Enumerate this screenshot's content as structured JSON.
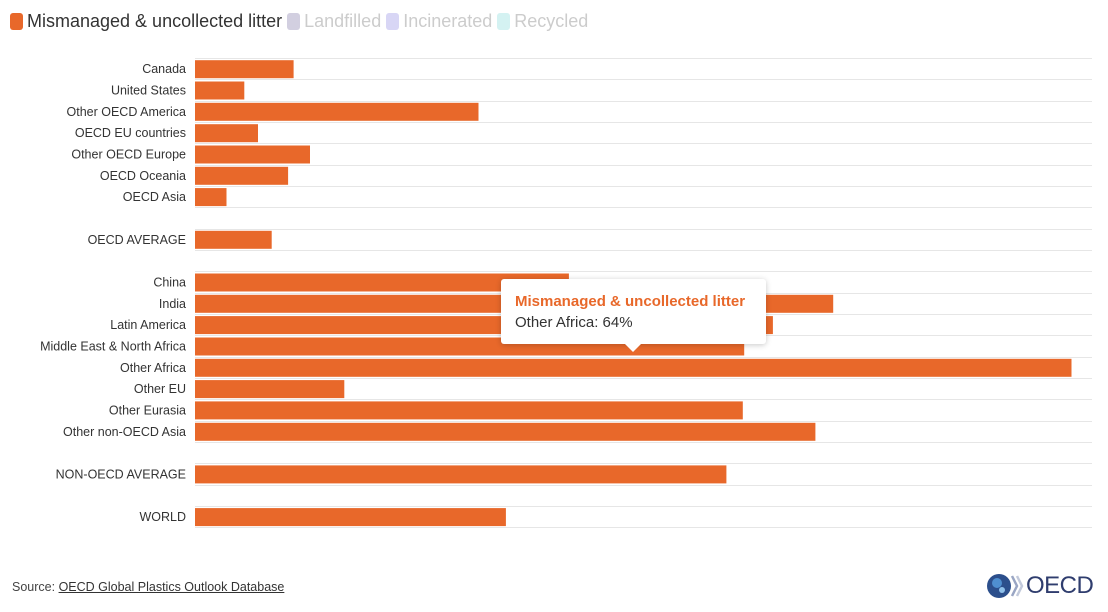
{
  "legend": {
    "items": [
      {
        "label": "Mismanaged & uncollected litter",
        "color": "#e8682a",
        "active": true
      },
      {
        "label": "Landfilled",
        "color": "#d2cfe0",
        "active": false
      },
      {
        "label": "Incinerated",
        "color": "#d8d6f5",
        "active": false
      },
      {
        "label": "Recycled",
        "color": "#d4f2f2",
        "active": false
      }
    ]
  },
  "chart_data": {
    "type": "bar",
    "orientation": "horizontal",
    "categories": [
      "Canada",
      "United States",
      "Other OECD America",
      "OECD EU countries",
      "Other OECD Europe",
      "OECD Oceania",
      "OECD Asia",
      "OECD AVERAGE",
      "China",
      "India",
      "Latin America",
      "Middle East & North Africa",
      "Other Africa",
      "Other EU",
      "Other Eurasia",
      "Other non-OECD Asia",
      "NON-OECD AVERAGE",
      "WORLD"
    ],
    "series": [
      {
        "name": "Mismanaged & uncollected litter",
        "color": "#e8682a",
        "values": [
          7.2,
          3.6,
          20.7,
          4.6,
          8.4,
          6.8,
          2.3,
          5.6,
          27.3,
          46.6,
          42.2,
          40.1,
          64,
          10.9,
          40,
          45.3,
          38.8,
          22.7
        ]
      }
    ],
    "xlim": [
      0,
      65.5
    ],
    "grid": true,
    "legend_position": "top-left"
  },
  "tooltip": {
    "title": "Mismanaged & uncollected litter",
    "category": "Other Africa",
    "value_text": "64%"
  },
  "source": {
    "prefix": "Source: ",
    "link_text": "OECD Global Plastics Outlook Database"
  },
  "logo": {
    "text": "OECD",
    "icon": "oecd-globe-icon"
  }
}
